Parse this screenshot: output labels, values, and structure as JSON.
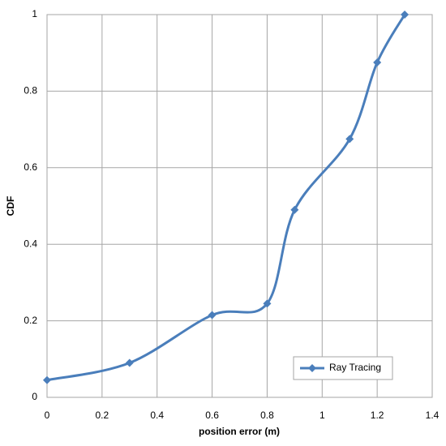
{
  "chart_data": {
    "type": "line",
    "x_label": "position error (m)",
    "y_label": "CDF",
    "x": [
      0,
      0.3,
      0.6,
      0.8,
      0.9,
      1.1,
      1.2,
      1.3
    ],
    "series": [
      {
        "name": "Ray Tracing",
        "color": "#4a7ebb",
        "values": [
          0.045,
          0.09,
          0.215,
          0.245,
          0.49,
          0.675,
          0.875,
          1.0
        ]
      }
    ],
    "xlim": [
      0,
      1.4
    ],
    "xticks": [
      0,
      0.2,
      0.4,
      0.6,
      0.8,
      1,
      1.2,
      1.4
    ],
    "ylim": [
      0,
      1
    ],
    "yticks": [
      0,
      0.2,
      0.4,
      0.6,
      0.8,
      1
    ],
    "grid": true,
    "smooth": true,
    "legend": "lower right"
  }
}
